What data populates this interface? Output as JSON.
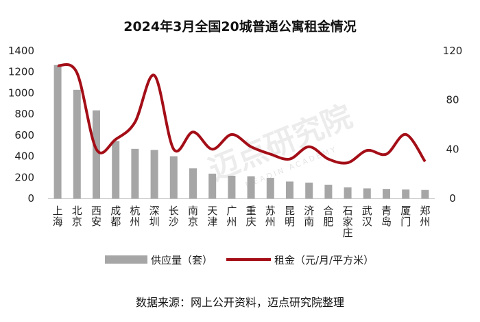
{
  "chart_data": {
    "type": "bar+line",
    "title": "2024年3月全国20城普通公寓租金情况",
    "categories": [
      "上海",
      "北京",
      "西安",
      "成都",
      "杭州",
      "深圳",
      "长沙",
      "南京",
      "天津",
      "广州",
      "重庆",
      "苏州",
      "昆明",
      "济南",
      "合肥",
      "石家庄",
      "武汉",
      "青岛",
      "厦门",
      "郑州"
    ],
    "series": [
      {
        "name": "供应量（套）",
        "type": "bar",
        "axis": "left",
        "color": "#a6a6a6",
        "values": [
          1265,
          1030,
          835,
          545,
          470,
          460,
          400,
          285,
          235,
          215,
          210,
          195,
          160,
          150,
          130,
          105,
          95,
          90,
          85,
          80
        ]
      },
      {
        "name": "租金（元/月/平方米）",
        "type": "line",
        "axis": "right",
        "color": "#a40e17",
        "values": [
          108,
          102,
          40,
          48,
          62,
          100,
          40,
          54,
          40,
          52,
          42,
          36,
          32,
          42,
          32,
          29,
          39,
          36,
          52,
          30
        ]
      }
    ],
    "y_left": {
      "min": 0,
      "max": 1400,
      "ticks": [
        0,
        200,
        400,
        600,
        800,
        1000,
        1200,
        1400
      ]
    },
    "y_right": {
      "min": 0,
      "max": 120,
      "ticks": [
        0,
        40,
        80,
        120
      ]
    },
    "legend_position": "bottom",
    "grid": false
  },
  "source_text": "数据来源：网上公开资料，迈点研究院整理",
  "watermark": {
    "text": "迈点研究院",
    "sub": "MEADIN ACADEMY"
  }
}
